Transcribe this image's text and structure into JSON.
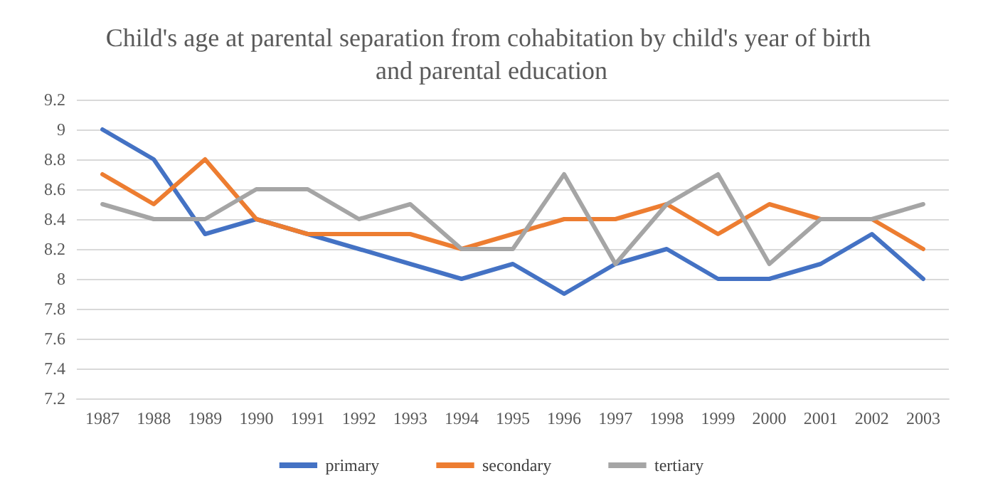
{
  "chart_data": {
    "type": "line",
    "title": "Child's age at parental separation from cohabitation by child's year of birth and parental education",
    "categories": [
      "1987",
      "1988",
      "1989",
      "1990",
      "1991",
      "1992",
      "1993",
      "1994",
      "1995",
      "1996",
      "1997",
      "1998",
      "1999",
      "2000",
      "2001",
      "2002",
      "2003"
    ],
    "series": [
      {
        "name": "primary",
        "color": "#4472c4",
        "values": [
          9,
          8.8,
          8.3,
          8.4,
          8.3,
          8.2,
          8.1,
          8.0,
          8.1,
          7.9,
          8.1,
          8.2,
          8.0,
          8.0,
          8.1,
          8.3,
          8.0
        ]
      },
      {
        "name": "secondary",
        "color": "#ed7d31",
        "values": [
          8.7,
          8.5,
          8.8,
          8.4,
          8.3,
          8.3,
          8.3,
          8.2,
          8.3,
          8.4,
          8.4,
          8.5,
          8.3,
          8.5,
          8.4,
          8.4,
          8.2
        ]
      },
      {
        "name": "tertiary",
        "color": "#a5a5a5",
        "values": [
          8.5,
          8.4,
          8.4,
          8.6,
          8.6,
          8.4,
          8.5,
          8.2,
          8.2,
          8.7,
          8.1,
          8.5,
          8.7,
          8.1,
          8.4,
          8.4,
          8.5
        ]
      }
    ],
    "ylim": [
      7.2,
      9.2
    ],
    "yticks": [
      7.2,
      7.4,
      7.6,
      7.8,
      8,
      8.2,
      8.4,
      8.6,
      8.8,
      9,
      9.2
    ],
    "grid": "y",
    "legend": "bottom",
    "marker": "none",
    "line_style": "solid"
  }
}
